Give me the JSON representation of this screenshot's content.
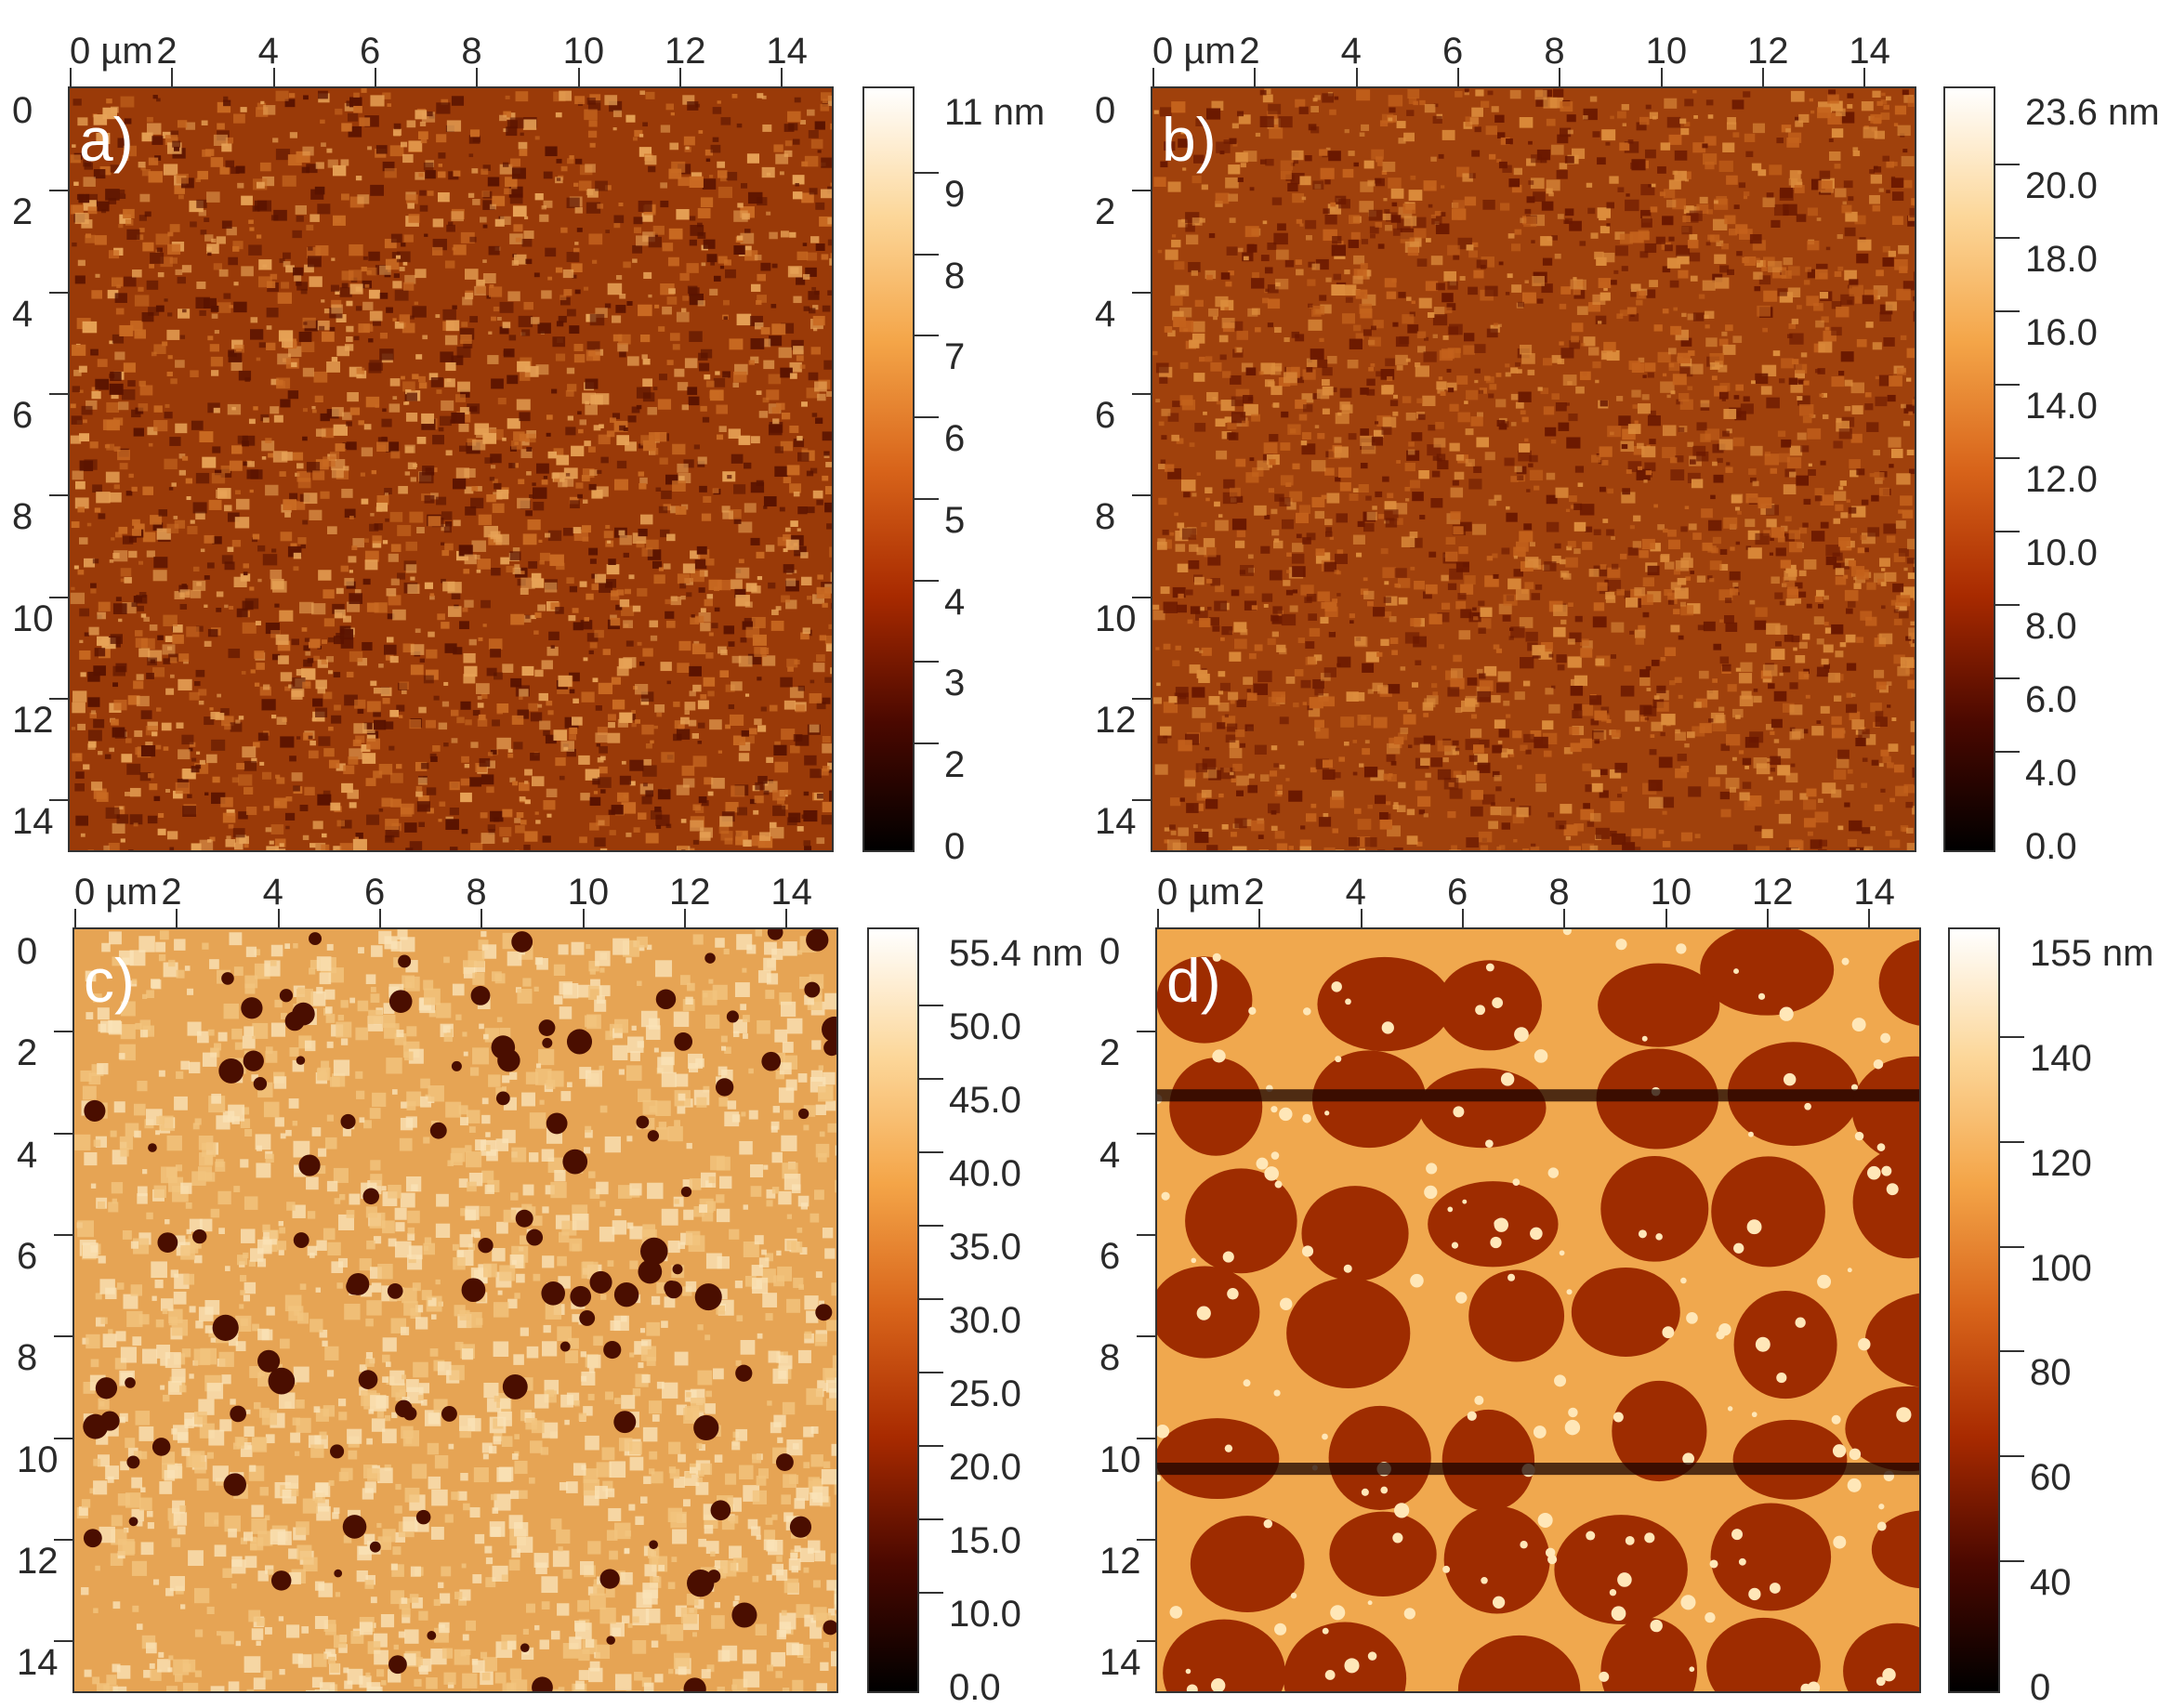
{
  "panels": [
    {
      "id": "a",
      "label": "a)",
      "x_ticks": [
        "0 µm",
        "2",
        "4",
        "6",
        "8",
        "10",
        "12",
        "14"
      ],
      "y_ticks": [
        "0",
        "2",
        "4",
        "6",
        "8",
        "10",
        "12",
        "14"
      ],
      "colorbar": [
        "11 nm",
        "9",
        "8",
        "7",
        "6",
        "5",
        "4",
        "3",
        "2",
        "0"
      ],
      "texture": "fine-grain",
      "palette": [
        "#5a1300",
        "#9a3a08",
        "#c96a22",
        "#e7a256"
      ]
    },
    {
      "id": "b",
      "label": "b)",
      "x_ticks": [
        "0 µm",
        "2",
        "4",
        "6",
        "8",
        "10",
        "12",
        "14"
      ],
      "y_ticks": [
        "0",
        "2",
        "4",
        "6",
        "8",
        "10",
        "12",
        "14"
      ],
      "colorbar": [
        "23.6 nm",
        "20.0",
        "18.0",
        "16.0",
        "14.0",
        "12.0",
        "10.0",
        "8.0",
        "6.0",
        "4.0",
        "0.0"
      ],
      "texture": "fine-grain",
      "palette": [
        "#6a1800",
        "#a0410c",
        "#c4621c",
        "#dc8c3c"
      ]
    },
    {
      "id": "c",
      "label": "c)",
      "x_ticks": [
        "0 µm",
        "2",
        "4",
        "6",
        "8",
        "10",
        "12",
        "14"
      ],
      "y_ticks": [
        "0",
        "2",
        "4",
        "6",
        "8",
        "10",
        "12",
        "14"
      ],
      "colorbar": [
        "55.4 nm",
        "50.0",
        "45.0",
        "40.0",
        "35.0",
        "30.0",
        "25.0",
        "20.0",
        "15.0",
        "10.0",
        "0.0"
      ],
      "texture": "light-with-pits",
      "palette": [
        "#4a0e00",
        "#e6a454",
        "#f3c47e",
        "#fae2b6"
      ]
    },
    {
      "id": "d",
      "label": "d)",
      "x_ticks": [
        "0 µm",
        "2",
        "4",
        "6",
        "8",
        "10",
        "12",
        "14"
      ],
      "y_ticks": [
        "0",
        "2",
        "4",
        "6",
        "8",
        "10",
        "12",
        "14"
      ],
      "colorbar": [
        "155 nm",
        "140",
        "120",
        "100",
        "80",
        "60",
        "40",
        "0"
      ],
      "texture": "network",
      "palette": [
        "#9e2c00",
        "#f0a84e",
        "#ffe7b8",
        "#1a0300"
      ]
    }
  ],
  "colorbar_gradient": [
    "#000000",
    "#4a0800",
    "#a82a00",
    "#d8641a",
    "#f4a548",
    "#fcd79a",
    "#ffffff"
  ]
}
